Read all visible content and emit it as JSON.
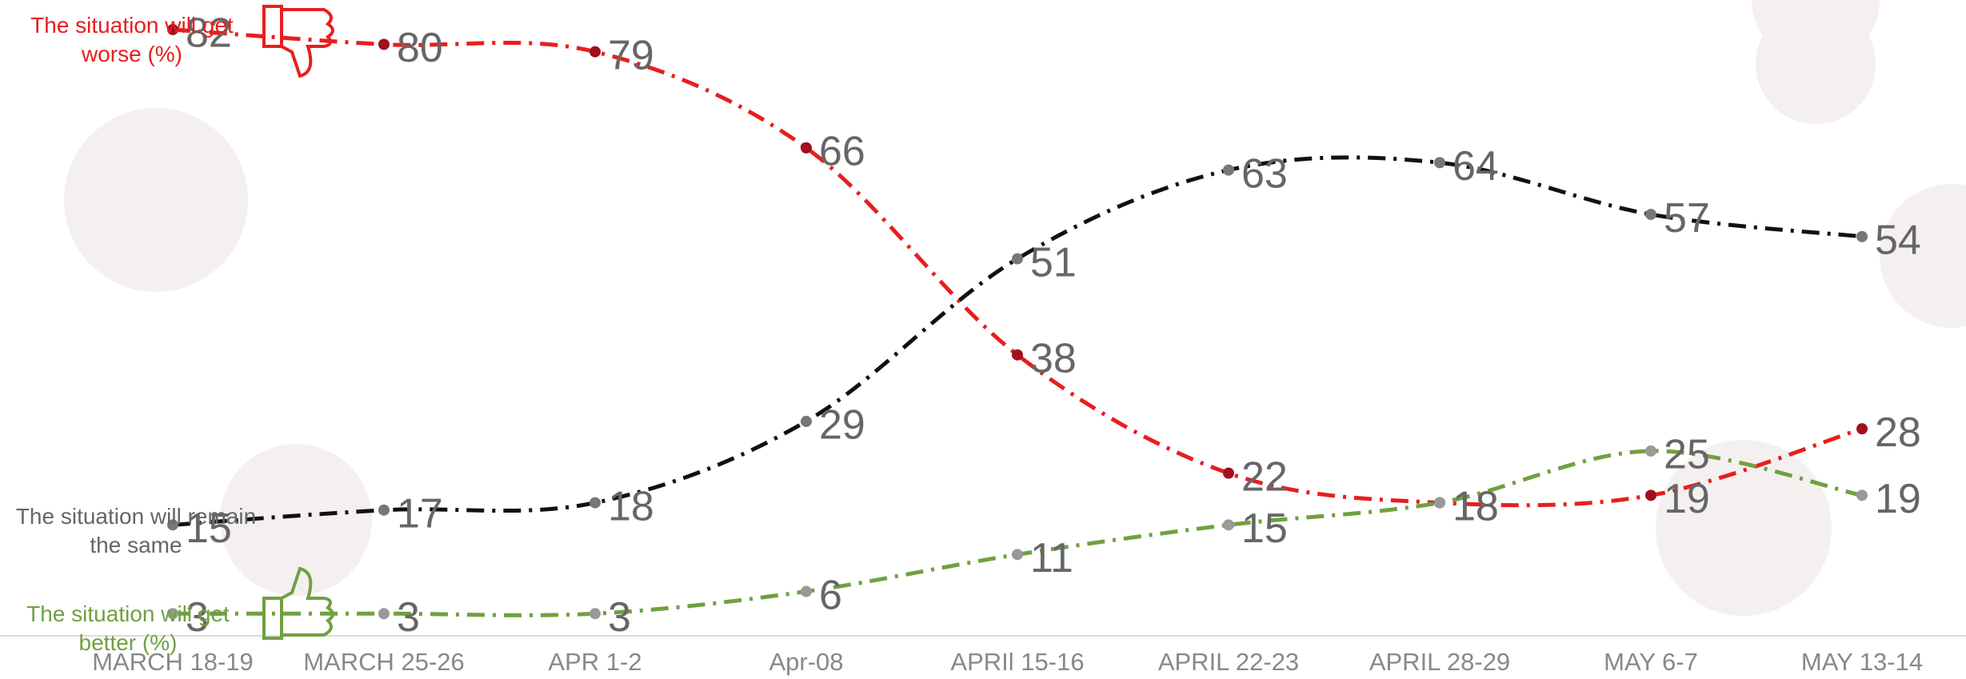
{
  "chart_data": {
    "type": "line",
    "categories": [
      "MARCH 18-19",
      "MARCH 25-26",
      "APR 1-2",
      "Apr-08",
      "APRIl 15-16",
      "APRIL 22-23",
      "APRIL 28-29",
      "MAY 6-7",
      "MAY 13-14"
    ],
    "ylim": [
      0,
      86
    ],
    "series": [
      {
        "name": "The situation will get worse (%)",
        "color": "#e81e1e",
        "marker_color": "#a0101e",
        "values": [
          82,
          80,
          79,
          66,
          38,
          22,
          18,
          19,
          28
        ]
      },
      {
        "name": "The situation will remain the same",
        "color": "#111111",
        "marker_color": "#777777",
        "values": [
          15,
          17,
          18,
          29,
          51,
          63,
          64,
          57,
          54
        ]
      },
      {
        "name": "The situation will get better (%)",
        "color": "#70a040",
        "marker_color": "#999999",
        "values": [
          3,
          3,
          3,
          6,
          11,
          15,
          18,
          25,
          19
        ]
      }
    ]
  }
}
